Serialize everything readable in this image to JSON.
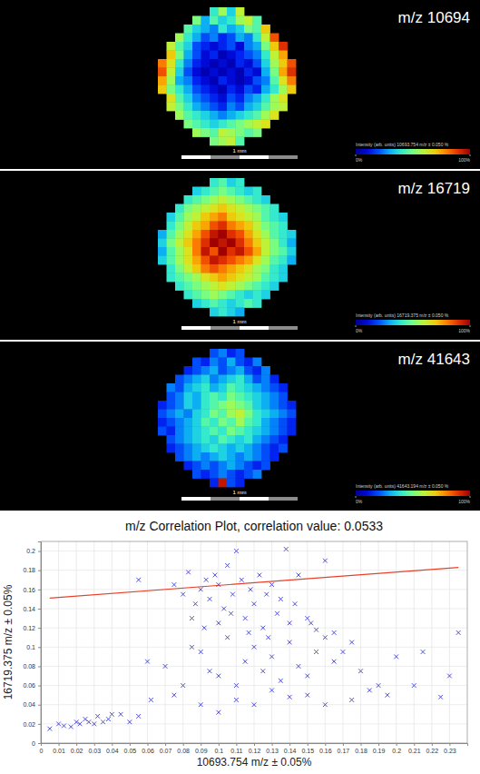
{
  "chart_data": [
    {
      "type": "heatmap",
      "title": "m/z 10694",
      "scale_label": "1 mm",
      "colorbar": {
        "label": "Intensity (arb. units) 10693.754 m/z ± 0.050 %",
        "range": [
          0,
          100
        ],
        "ticks": [
          {
            "value": 0,
            "label": "0%"
          },
          {
            "value": 100,
            "label": "100%"
          }
        ]
      },
      "cells": [
        [
          null,
          null,
          null,
          null,
          null,
          null,
          40,
          55,
          35,
          60,
          null,
          null,
          null,
          null,
          null,
          null
        ],
        [
          null,
          null,
          null,
          null,
          50,
          30,
          45,
          35,
          40,
          55,
          60,
          45,
          null,
          null,
          null,
          null
        ],
        [
          null,
          null,
          null,
          45,
          35,
          30,
          25,
          40,
          30,
          35,
          50,
          45,
          70,
          null,
          null,
          null
        ],
        [
          null,
          null,
          55,
          40,
          30,
          20,
          25,
          15,
          20,
          30,
          25,
          40,
          60,
          85,
          null,
          null
        ],
        [
          null,
          60,
          45,
          35,
          20,
          15,
          10,
          15,
          20,
          10,
          25,
          30,
          50,
          70,
          90,
          null
        ],
        [
          null,
          70,
          50,
          30,
          20,
          10,
          15,
          5,
          10,
          15,
          20,
          25,
          40,
          60,
          75,
          null
        ],
        [
          80,
          65,
          40,
          25,
          15,
          10,
          5,
          10,
          5,
          15,
          10,
          20,
          35,
          55,
          70,
          85
        ],
        [
          85,
          60,
          35,
          20,
          10,
          5,
          10,
          5,
          10,
          5,
          15,
          10,
          30,
          50,
          75,
          90
        ],
        [
          75,
          55,
          30,
          25,
          15,
          10,
          5,
          15,
          10,
          5,
          10,
          20,
          25,
          45,
          65,
          80
        ],
        [
          70,
          50,
          40,
          30,
          20,
          15,
          10,
          5,
          15,
          10,
          20,
          15,
          30,
          40,
          55,
          70
        ],
        [
          null,
          65,
          45,
          35,
          25,
          20,
          15,
          10,
          20,
          15,
          25,
          30,
          40,
          55,
          65,
          null
        ],
        [
          null,
          60,
          50,
          40,
          30,
          25,
          20,
          15,
          25,
          20,
          30,
          35,
          45,
          55,
          60,
          null
        ],
        [
          null,
          null,
          55,
          45,
          40,
          35,
          30,
          25,
          30,
          35,
          40,
          45,
          55,
          65,
          null,
          null
        ],
        [
          null,
          null,
          null,
          50,
          45,
          40,
          35,
          40,
          45,
          50,
          55,
          60,
          65,
          null,
          null,
          null
        ],
        [
          null,
          null,
          null,
          null,
          55,
          50,
          45,
          60,
          55,
          50,
          45,
          50,
          null,
          null,
          null,
          null
        ],
        [
          null,
          null,
          null,
          null,
          null,
          null,
          50,
          55,
          60,
          45,
          null,
          null,
          null,
          null,
          null,
          null
        ]
      ]
    },
    {
      "type": "heatmap",
      "title": "m/z 16719",
      "scale_label": "1 mm",
      "colorbar": {
        "label": "Intensity (arb. units) 16719.375 m/z ± 0.050 %",
        "range": [
          0,
          100
        ],
        "ticks": [
          {
            "value": 0,
            "label": "0%"
          },
          {
            "value": 100,
            "label": "100%"
          }
        ]
      },
      "cells": [
        [
          null,
          null,
          null,
          null,
          null,
          null,
          40,
          45,
          35,
          40,
          null,
          null,
          null,
          null,
          null,
          null
        ],
        [
          null,
          null,
          null,
          null,
          35,
          40,
          45,
          50,
          45,
          40,
          35,
          40,
          null,
          null,
          null,
          null
        ],
        [
          null,
          null,
          null,
          40,
          45,
          50,
          55,
          60,
          55,
          50,
          45,
          40,
          35,
          null,
          null,
          null
        ],
        [
          null,
          null,
          40,
          50,
          55,
          60,
          65,
          70,
          65,
          60,
          55,
          50,
          45,
          40,
          null,
          null
        ],
        [
          null,
          35,
          45,
          55,
          60,
          70,
          75,
          80,
          70,
          65,
          60,
          55,
          45,
          40,
          35,
          null
        ],
        [
          null,
          40,
          50,
          60,
          70,
          75,
          85,
          90,
          80,
          75,
          70,
          60,
          50,
          45,
          40,
          null
        ],
        [
          30,
          45,
          55,
          65,
          75,
          85,
          95,
          100,
          90,
          85,
          75,
          65,
          55,
          45,
          40,
          35
        ],
        [
          35,
          50,
          60,
          70,
          80,
          90,
          100,
          95,
          100,
          90,
          80,
          70,
          60,
          50,
          40,
          30
        ],
        [
          30,
          45,
          55,
          65,
          80,
          95,
          85,
          100,
          90,
          95,
          85,
          75,
          60,
          50,
          45,
          35
        ],
        [
          35,
          45,
          55,
          65,
          75,
          85,
          95,
          90,
          85,
          80,
          75,
          65,
          55,
          45,
          40,
          30
        ],
        [
          null,
          40,
          50,
          60,
          70,
          80,
          85,
          80,
          75,
          70,
          65,
          55,
          50,
          40,
          35,
          null
        ],
        [
          null,
          40,
          45,
          50,
          55,
          65,
          70,
          75,
          70,
          65,
          60,
          55,
          45,
          40,
          35,
          null
        ],
        [
          null,
          null,
          40,
          45,
          50,
          55,
          60,
          65,
          60,
          55,
          50,
          45,
          40,
          35,
          null,
          null
        ],
        [
          null,
          null,
          null,
          40,
          45,
          50,
          55,
          50,
          45,
          40,
          35,
          40,
          35,
          null,
          null,
          null
        ],
        [
          null,
          null,
          null,
          null,
          35,
          40,
          45,
          40,
          35,
          40,
          45,
          40,
          null,
          null,
          null,
          null
        ],
        [
          null,
          null,
          null,
          null,
          null,
          null,
          35,
          40,
          35,
          30,
          null,
          null,
          null,
          null,
          null,
          null
        ]
      ]
    },
    {
      "type": "heatmap",
      "title": "m/z 41643",
      "scale_label": "1 mm",
      "colorbar": {
        "label": "Intensity (arb. units) 41643.194 m/z ± 0.050 %",
        "range": [
          0,
          100
        ],
        "ticks": [
          {
            "value": 0,
            "label": "0%"
          },
          {
            "value": 100,
            "label": "100%"
          }
        ]
      },
      "cells": [
        [
          null,
          null,
          null,
          null,
          null,
          null,
          20,
          25,
          15,
          20,
          null,
          null,
          null,
          null,
          null,
          null
        ],
        [
          null,
          null,
          null,
          null,
          20,
          15,
          25,
          20,
          30,
          20,
          15,
          25,
          null,
          null,
          null,
          null
        ],
        [
          null,
          null,
          null,
          15,
          20,
          25,
          30,
          20,
          25,
          30,
          20,
          15,
          25,
          null,
          null,
          null
        ],
        [
          null,
          null,
          20,
          25,
          30,
          35,
          25,
          30,
          35,
          40,
          30,
          20,
          25,
          15,
          null,
          null
        ],
        [
          null,
          25,
          20,
          30,
          35,
          40,
          30,
          35,
          45,
          40,
          35,
          30,
          25,
          20,
          15,
          null
        ],
        [
          null,
          20,
          25,
          35,
          30,
          40,
          45,
          40,
          50,
          45,
          40,
          35,
          30,
          25,
          20,
          null
        ],
        [
          15,
          20,
          25,
          35,
          30,
          40,
          45,
          50,
          55,
          50,
          45,
          35,
          30,
          25,
          20,
          15
        ],
        [
          20,
          25,
          30,
          25,
          35,
          40,
          50,
          45,
          55,
          60,
          50,
          40,
          35,
          30,
          25,
          20
        ],
        [
          15,
          20,
          25,
          30,
          35,
          45,
          40,
          50,
          45,
          55,
          45,
          40,
          30,
          25,
          20,
          15
        ],
        [
          20,
          15,
          25,
          30,
          35,
          40,
          45,
          40,
          50,
          45,
          40,
          35,
          30,
          25,
          20,
          15
        ],
        [
          null,
          20,
          25,
          30,
          35,
          40,
          35,
          45,
          40,
          35,
          40,
          30,
          25,
          20,
          15,
          null
        ],
        [
          null,
          15,
          20,
          25,
          30,
          35,
          40,
          35,
          30,
          35,
          30,
          25,
          20,
          15,
          20,
          null
        ],
        [
          null,
          null,
          20,
          25,
          30,
          25,
          30,
          35,
          30,
          25,
          30,
          25,
          20,
          15,
          null,
          null
        ],
        [
          null,
          null,
          null,
          15,
          20,
          25,
          20,
          25,
          30,
          25,
          20,
          15,
          20,
          null,
          null,
          null
        ],
        [
          null,
          null,
          null,
          null,
          20,
          15,
          20,
          25,
          20,
          15,
          20,
          25,
          null,
          null,
          null,
          null
        ],
        [
          null,
          null,
          null,
          null,
          null,
          null,
          15,
          95,
          20,
          15,
          null,
          null,
          null,
          null,
          null,
          null
        ]
      ]
    },
    {
      "type": "scatter",
      "title": "m/z Correlation Plot, correlation value: 0.0533",
      "x_label": "10693.754 m/z ± 0.05%",
      "y_label": "16719.375 m/z ± 0.05%",
      "marker": "x",
      "color": "#3b3bd6",
      "grid": true,
      "xlim": [
        0,
        0.24
      ],
      "ylim": [
        0,
        0.21
      ],
      "xticks": [
        0,
        0.01,
        0.02,
        0.03,
        0.04,
        0.05,
        0.06,
        0.07,
        0.08,
        0.09,
        0.1,
        0.11,
        0.12,
        0.13,
        0.14,
        0.15,
        0.16,
        0.17,
        0.18,
        0.19,
        0.2,
        0.21,
        0.22,
        0.23
      ],
      "yticks": [
        0,
        0.02,
        0.04,
        0.06,
        0.08,
        0.1,
        0.12,
        0.14,
        0.16,
        0.18,
        0.2
      ],
      "x": [
        0.005,
        0.01,
        0.013,
        0.017,
        0.02,
        0.022,
        0.025,
        0.027,
        0.03,
        0.032,
        0.035,
        0.038,
        0.04,
        0.045,
        0.05,
        0.055,
        0.062,
        0.075,
        0.08,
        0.09,
        0.1,
        0.11,
        0.12,
        0.13,
        0.14,
        0.15,
        0.16,
        0.175,
        0.185,
        0.195,
        0.21,
        0.225,
        0.06,
        0.07,
        0.085,
        0.09,
        0.1,
        0.105,
        0.115,
        0.12,
        0.125,
        0.13,
        0.135,
        0.14,
        0.145,
        0.15,
        0.155,
        0.16,
        0.165,
        0.17,
        0.18,
        0.19,
        0.2,
        0.215,
        0.23,
        0.235,
        0.11,
        0.095,
        0.055,
        0.075,
        0.08,
        0.083,
        0.087,
        0.09,
        0.093,
        0.095,
        0.098,
        0.1,
        0.103,
        0.105,
        0.108,
        0.11,
        0.113,
        0.115,
        0.118,
        0.12,
        0.123,
        0.125,
        0.127,
        0.13,
        0.133,
        0.135,
        0.138,
        0.14,
        0.143,
        0.145,
        0.15,
        0.155,
        0.16,
        0.165,
        0.085,
        0.092,
        0.1,
        0.107,
        0.117,
        0.128,
        0.152,
        0.175
      ],
      "values": [
        0.015,
        0.02,
        0.018,
        0.017,
        0.022,
        0.02,
        0.025,
        0.022,
        0.02,
        0.028,
        0.022,
        0.025,
        0.03,
        0.03,
        0.022,
        0.028,
        0.045,
        0.05,
        0.06,
        0.04,
        0.032,
        0.045,
        0.04,
        0.055,
        0.048,
        0.05,
        0.04,
        0.045,
        0.055,
        0.05,
        0.06,
        0.048,
        0.085,
        0.08,
        0.1,
        0.095,
        0.07,
        0.11,
        0.085,
        0.1,
        0.075,
        0.09,
        0.065,
        0.105,
        0.08,
        0.07,
        0.095,
        0.11,
        0.085,
        0.095,
        0.075,
        0.06,
        0.09,
        0.095,
        0.07,
        0.115,
        0.06,
        0.075,
        0.17,
        0.165,
        0.155,
        0.178,
        0.145,
        0.16,
        0.17,
        0.15,
        0.175,
        0.165,
        0.14,
        0.185,
        0.155,
        0.2,
        0.17,
        0.13,
        0.16,
        0.145,
        0.175,
        0.12,
        0.155,
        0.165,
        0.135,
        0.15,
        0.202,
        0.125,
        0.145,
        0.175,
        0.13,
        0.118,
        0.19,
        0.115,
        0.13,
        0.12,
        0.125,
        0.135,
        0.115,
        0.11,
        0.125,
        0.105
      ],
      "fit": {
        "x": [
          0.005,
          0.235
        ],
        "values": [
          0.151,
          0.183
        ],
        "color": "#e8402a"
      }
    }
  ]
}
